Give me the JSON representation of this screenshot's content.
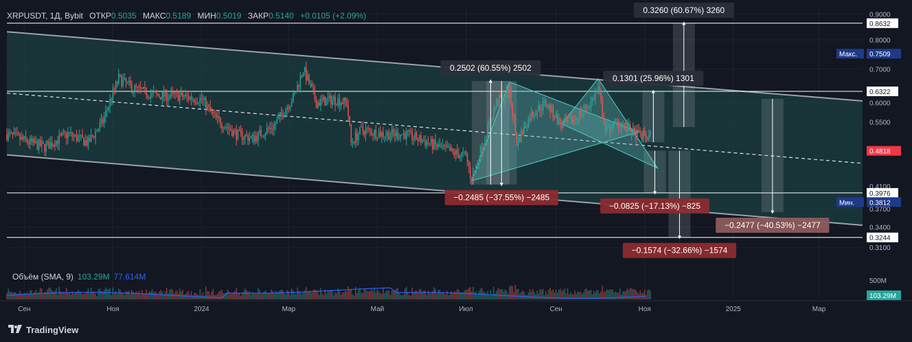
{
  "header": {
    "symbol": "XRPUSDT, 1Д, Bybit",
    "open_label": "ОТКР",
    "open": "0.5035",
    "high_label": "МАКС",
    "high": "0.5189",
    "low_label": "МИН",
    "low": "0.5019",
    "close_label": "ЗАКР",
    "close": "0.5140",
    "change": "+0.0105 (+2.09%)"
  },
  "volume_legend": {
    "label": "Объём (SMA, 9)",
    "value1": "103.29M",
    "value2": "77.614M"
  },
  "logo": {
    "text": "TradingView",
    "icon": "tradingview-logo-icon"
  },
  "colors": {
    "background": "#131722",
    "up": "#26a69a",
    "down": "#ef5350",
    "channel_fill": "#1e4c4c",
    "triangle_fill": "#5fb3b3",
    "ma_line": "#2962ff",
    "price_badge": "#f23645"
  },
  "chart_data": {
    "type": "candlestick",
    "symbol": "XRPUSDT",
    "timeframe": "1Д",
    "exchange": "Bybit",
    "ohlc_last": {
      "open": 0.5035,
      "high": 0.5189,
      "low": 0.5019,
      "close": 0.514
    },
    "y_axis": {
      "ticks": [
        "0.9000",
        "0.8000",
        "0.7000",
        "0.6000",
        "0.5500",
        "0.4100",
        "0.3700",
        "0.3400",
        "0.3100"
      ],
      "scale": "log",
      "range": [
        0.295,
        0.93
      ]
    },
    "x_axis": {
      "ticks": [
        {
          "label": "Сен",
          "date": "2023-09-01"
        },
        {
          "label": "Ноя",
          "date": "2023-11-01"
        },
        {
          "label": "2024",
          "date": "2024-01-01"
        },
        {
          "label": "Мар",
          "date": "2024-03-01"
        },
        {
          "label": "Май",
          "date": "2024-05-01"
        },
        {
          "label": "Июл",
          "date": "2024-07-01"
        },
        {
          "label": "Сен",
          "date": "2024-09-01"
        },
        {
          "label": "Ноя",
          "date": "2024-11-01"
        },
        {
          "label": "2025",
          "date": "2025-01-01"
        },
        {
          "label": "Мар",
          "date": "2025-03-01"
        }
      ],
      "range": [
        "2023-08-20",
        "2025-03-31"
      ]
    },
    "price_path": [
      [
        "2023-08-20",
        0.52
      ],
      [
        "2023-09-05",
        0.5
      ],
      [
        "2023-09-15",
        0.49
      ],
      [
        "2023-10-01",
        0.52
      ],
      [
        "2023-10-15",
        0.5
      ],
      [
        "2023-10-25",
        0.55
      ],
      [
        "2023-11-05",
        0.67
      ],
      [
        "2023-11-15",
        0.64
      ],
      [
        "2023-12-01",
        0.62
      ],
      [
        "2023-12-15",
        0.62
      ],
      [
        "2024-01-01",
        0.61
      ],
      [
        "2024-01-10",
        0.56
      ],
      [
        "2024-01-25",
        0.52
      ],
      [
        "2024-02-05",
        0.51
      ],
      [
        "2024-02-20",
        0.54
      ],
      [
        "2024-03-05",
        0.62
      ],
      [
        "2024-03-11",
        0.7
      ],
      [
        "2024-03-20",
        0.6
      ],
      [
        "2024-04-01",
        0.61
      ],
      [
        "2024-04-10",
        0.6
      ],
      [
        "2024-04-13",
        0.5
      ],
      [
        "2024-04-20",
        0.53
      ],
      [
        "2024-05-05",
        0.52
      ],
      [
        "2024-05-20",
        0.52
      ],
      [
        "2024-06-05",
        0.5
      ],
      [
        "2024-06-20",
        0.48
      ],
      [
        "2024-07-01",
        0.47
      ],
      [
        "2024-07-05",
        0.42
      ],
      [
        "2024-07-15",
        0.52
      ],
      [
        "2024-07-22",
        0.6
      ],
      [
        "2024-07-31",
        0.63
      ],
      [
        "2024-08-05",
        0.5
      ],
      [
        "2024-08-15",
        0.57
      ],
      [
        "2024-08-25",
        0.6
      ],
      [
        "2024-09-05",
        0.54
      ],
      [
        "2024-09-15",
        0.56
      ],
      [
        "2024-09-25",
        0.6
      ],
      [
        "2024-09-30",
        0.64
      ],
      [
        "2024-10-05",
        0.53
      ],
      [
        "2024-10-15",
        0.55
      ],
      [
        "2024-10-25",
        0.52
      ],
      [
        "2024-11-05",
        0.514
      ]
    ],
    "volume_sma_9": [
      103.29,
      77.614
    ],
    "volume_axis": {
      "tick": "500M"
    },
    "horizontal_levels": [
      {
        "value": 0.8632,
        "label": "0.8632"
      },
      {
        "value": 0.6322,
        "label": "0.6322"
      },
      {
        "value": 0.3976,
        "label": "0.3976"
      },
      {
        "value": 0.3244,
        "label": "0.3244"
      }
    ],
    "price_badges": [
      {
        "label": "Макс.",
        "value": "0.7509",
        "style": "max"
      },
      {
        "label": "Мин.",
        "value": "0.3812",
        "style": "min"
      },
      {
        "label": "",
        "value": "0.4818",
        "style": "current"
      },
      {
        "label": "",
        "value": "103.29M",
        "style": "volume"
      }
    ],
    "channel": {
      "upper": [
        [
          "2023-08-20",
          0.83
        ],
        [
          "2025-03-31",
          0.605
        ]
      ],
      "lower": [
        [
          "2023-08-20",
          0.473
        ],
        [
          "2025-03-31",
          0.343
        ]
      ],
      "mid": [
        [
          "2023-08-20",
          0.627
        ],
        [
          "2025-03-31",
          0.455
        ]
      ]
    },
    "triangles": [
      {
        "points": [
          [
            "2024-07-05",
            0.42
          ],
          [
            "2024-07-31",
            0.66
          ],
          [
            "2024-10-28",
            0.525
          ]
        ]
      },
      {
        "points": [
          [
            "2024-09-05",
            0.545
          ],
          [
            "2024-09-30",
            0.67
          ],
          [
            "2024-11-10",
            0.445
          ]
        ]
      }
    ],
    "measurements": [
      {
        "label": "0.2502 (60.55%) 2502",
        "from": [
          "2024-07-05",
          0.413
        ],
        "to": [
          "2024-07-31",
          0.663
        ],
        "direction": "up",
        "style": "up"
      },
      {
        "label": "−0.2485 (−37.55%) −2485",
        "from": [
          "2024-07-15",
          0.663
        ],
        "to": [
          "2024-08-05",
          0.413
        ],
        "direction": "down",
        "style": "down"
      },
      {
        "label": "0.1301 (25.96%) 1301",
        "from": [
          "2024-11-07",
          0.501
        ],
        "to": [
          "2024-11-07",
          0.632
        ],
        "direction": "up",
        "style": "up"
      },
      {
        "label": "0.3260 (60.67%) 3260",
        "from": [
          "2024-11-28",
          0.537
        ],
        "to": [
          "2024-11-28",
          0.863
        ],
        "direction": "up",
        "style": "up"
      },
      {
        "label": "−0.0825 (−17.13%) −825",
        "from": [
          "2024-11-08",
          0.482
        ],
        "to": [
          "2024-11-08",
          0.3976
        ],
        "direction": "down",
        "style": "down"
      },
      {
        "label": "−0.1574 (−32.66%) −1574",
        "from": [
          "2024-11-25",
          0.482
        ],
        "to": [
          "2024-11-25",
          0.3244
        ],
        "direction": "down",
        "style": "down"
      },
      {
        "label": "−0.2477 (−40.53%) −2477",
        "from": [
          "2025-01-28",
          0.611
        ],
        "to": [
          "2025-01-28",
          0.364
        ],
        "direction": "down",
        "style": "down-light"
      }
    ]
  }
}
